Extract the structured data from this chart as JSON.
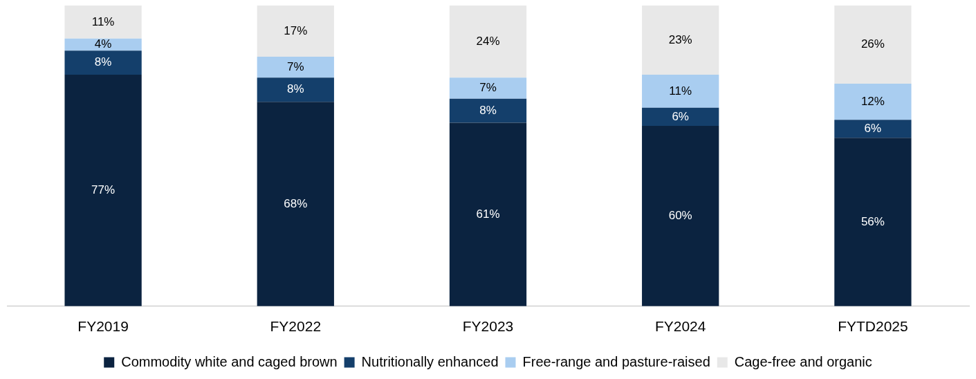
{
  "chart_data": {
    "type": "bar",
    "stacked": true,
    "legend": "bottom",
    "grid": false,
    "tick_labels": "x",
    "categories": [
      "FY2019",
      "FY2022",
      "FY2023",
      "FY2024",
      "FYTD2025"
    ],
    "series": [
      {
        "name": "Commodity white and caged brown",
        "color": "#0b2340",
        "values": [
          77,
          68,
          61,
          60,
          56
        ],
        "value_labels": [
          "77%",
          "68%",
          "61%",
          "60%",
          "56%"
        ]
      },
      {
        "name": "Nutritionally enhanced",
        "color": "#143f6b",
        "values": [
          8,
          8,
          8,
          6,
          6
        ],
        "value_labels": [
          "8%",
          "8%",
          "8%",
          "6%",
          "6%"
        ]
      },
      {
        "name": "Free-range and pasture-raised",
        "color": "#a9cdf0",
        "values": [
          4,
          7,
          7,
          11,
          12
        ],
        "value_labels": [
          "4%",
          "7%",
          "7%",
          "11%",
          "12%"
        ]
      },
      {
        "name": "Cage-free and organic",
        "color": "#e8e8e8",
        "values": [
          11,
          17,
          24,
          23,
          26
        ],
        "value_labels": [
          "11%",
          "17%",
          "24%",
          "23%",
          "26%"
        ]
      }
    ]
  }
}
